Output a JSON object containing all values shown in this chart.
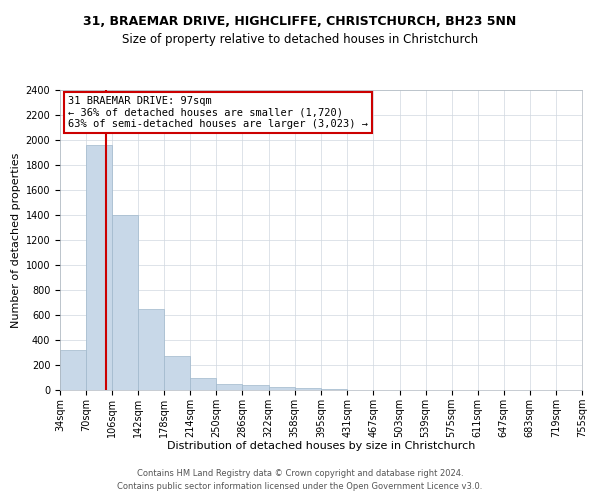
{
  "title1": "31, BRAEMAR DRIVE, HIGHCLIFFE, CHRISTCHURCH, BH23 5NN",
  "title2": "Size of property relative to detached houses in Christchurch",
  "xlabel": "Distribution of detached houses by size in Christchurch",
  "ylabel": "Number of detached properties",
  "property_size": 97,
  "property_label": "31 BRAEMAR DRIVE: 97sqm",
  "annotation_line1": "← 36% of detached houses are smaller (1,720)",
  "annotation_line2": "63% of semi-detached houses are larger (3,023) →",
  "footnote1": "Contains HM Land Registry data © Crown copyright and database right 2024.",
  "footnote2": "Contains public sector information licensed under the Open Government Licence v3.0.",
  "bar_color": "#c8d8e8",
  "bar_edge_color": "#a0b8cc",
  "vline_color": "#cc0000",
  "annotation_box_edge": "#cc0000",
  "grid_color": "#d0d8e0",
  "bin_edges": [
    34,
    70,
    106,
    142,
    178,
    214,
    250,
    286,
    322,
    358,
    395,
    431,
    467,
    503,
    539,
    575,
    611,
    647,
    683,
    719,
    755
  ],
  "bin_labels": [
    "34sqm",
    "70sqm",
    "106sqm",
    "142sqm",
    "178sqm",
    "214sqm",
    "250sqm",
    "286sqm",
    "322sqm",
    "358sqm",
    "395sqm",
    "431sqm",
    "467sqm",
    "503sqm",
    "539sqm",
    "575sqm",
    "611sqm",
    "647sqm",
    "683sqm",
    "719sqm",
    "755sqm"
  ],
  "bar_heights": [
    320,
    1960,
    1400,
    650,
    270,
    100,
    50,
    38,
    28,
    20,
    10,
    0,
    0,
    0,
    0,
    0,
    0,
    0,
    0,
    0
  ],
  "ylim": [
    0,
    2400
  ],
  "yticks": [
    0,
    200,
    400,
    600,
    800,
    1000,
    1200,
    1400,
    1600,
    1800,
    2000,
    2200,
    2400
  ],
  "title1_fontsize": 9,
  "title2_fontsize": 8.5,
  "xlabel_fontsize": 8,
  "ylabel_fontsize": 8,
  "tick_fontsize": 7,
  "footnote_fontsize": 6,
  "annotation_fontsize": 7.5
}
